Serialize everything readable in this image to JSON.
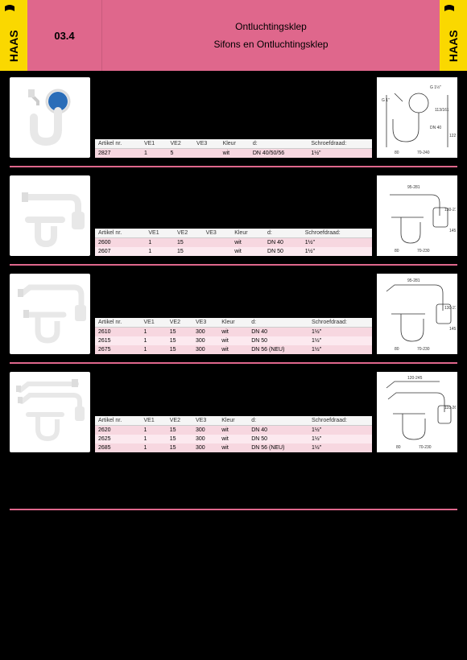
{
  "header": {
    "section": "03.4",
    "title": "Ontluchtingsklep",
    "subtitle": "Sifons en Ontluchtingsklep"
  },
  "colors": {
    "brand_yellow": "#fad800",
    "brand_pink": "#df678c",
    "row_alt": "#f7d7e0",
    "row_norm": "#fce9ef",
    "bg": "#000000"
  },
  "table_headers": {
    "artikel": "Artikel nr.",
    "ve1": "VE1",
    "ve2": "VE2",
    "ve3": "VE3",
    "kleur": "Kleur",
    "d": "d:",
    "schroef": "Schroefdraad:"
  },
  "products": [
    {
      "rows": [
        {
          "artikel": "2827",
          "ve1": "1",
          "ve2": "5",
          "ve3": "",
          "kleur": "wit",
          "d": "DN 40/50/56",
          "schroef": "1½\"",
          "alt": true
        }
      ]
    },
    {
      "rows": [
        {
          "artikel": "2600",
          "ve1": "1",
          "ve2": "15",
          "ve3": "",
          "kleur": "wit",
          "d": "DN 40",
          "schroef": "1½\"",
          "alt": true
        },
        {
          "artikel": "2607",
          "ve1": "1",
          "ve2": "15",
          "ve3": "",
          "kleur": "wit",
          "d": "DN 50",
          "schroef": "1½\"",
          "alt": false
        }
      ]
    },
    {
      "rows": [
        {
          "artikel": "2610",
          "ve1": "1",
          "ve2": "15",
          "ve3": "300",
          "kleur": "wit",
          "d": "DN 40",
          "schroef": "1½\"",
          "alt": true
        },
        {
          "artikel": "2615",
          "ve1": "1",
          "ve2": "15",
          "ve3": "300",
          "kleur": "wit",
          "d": "DN 50",
          "schroef": "1½\"",
          "alt": false
        },
        {
          "artikel": "2675",
          "ve1": "1",
          "ve2": "15",
          "ve3": "300",
          "kleur": "wit",
          "d": "DN 56 (NEU)",
          "schroef": "1½\"",
          "alt": true
        }
      ]
    },
    {
      "rows": [
        {
          "artikel": "2620",
          "ve1": "1",
          "ve2": "15",
          "ve3": "300",
          "kleur": "wit",
          "d": "DN 40",
          "schroef": "1½\"",
          "alt": true
        },
        {
          "artikel": "2625",
          "ve1": "1",
          "ve2": "15",
          "ve3": "300",
          "kleur": "wit",
          "d": "DN 50",
          "schroef": "1½\"",
          "alt": false
        },
        {
          "artikel": "2685",
          "ve1": "1",
          "ve2": "15",
          "ve3": "300",
          "kleur": "wit",
          "d": "DN 56 (NEU)",
          "schroef": "1½\"",
          "alt": true
        }
      ]
    }
  ],
  "diagram_labels": {
    "p1": {
      "a": "G 1½\"",
      "b": "G 1\"",
      "c": "113/161",
      "d": "DN 40",
      "e": "122",
      "f": "80",
      "g": "70-240"
    },
    "p2": {
      "a": "95-281",
      "b": "130-210",
      "c": "145",
      "d": "80",
      "e": "70-230"
    },
    "p3": {
      "a": "95-281",
      "b": "130-210",
      "c": "145",
      "d": "80",
      "e": "70-230"
    },
    "p4": {
      "a": "120-245",
      "b": "110-265",
      "c": "80",
      "d": "70-230"
    }
  }
}
